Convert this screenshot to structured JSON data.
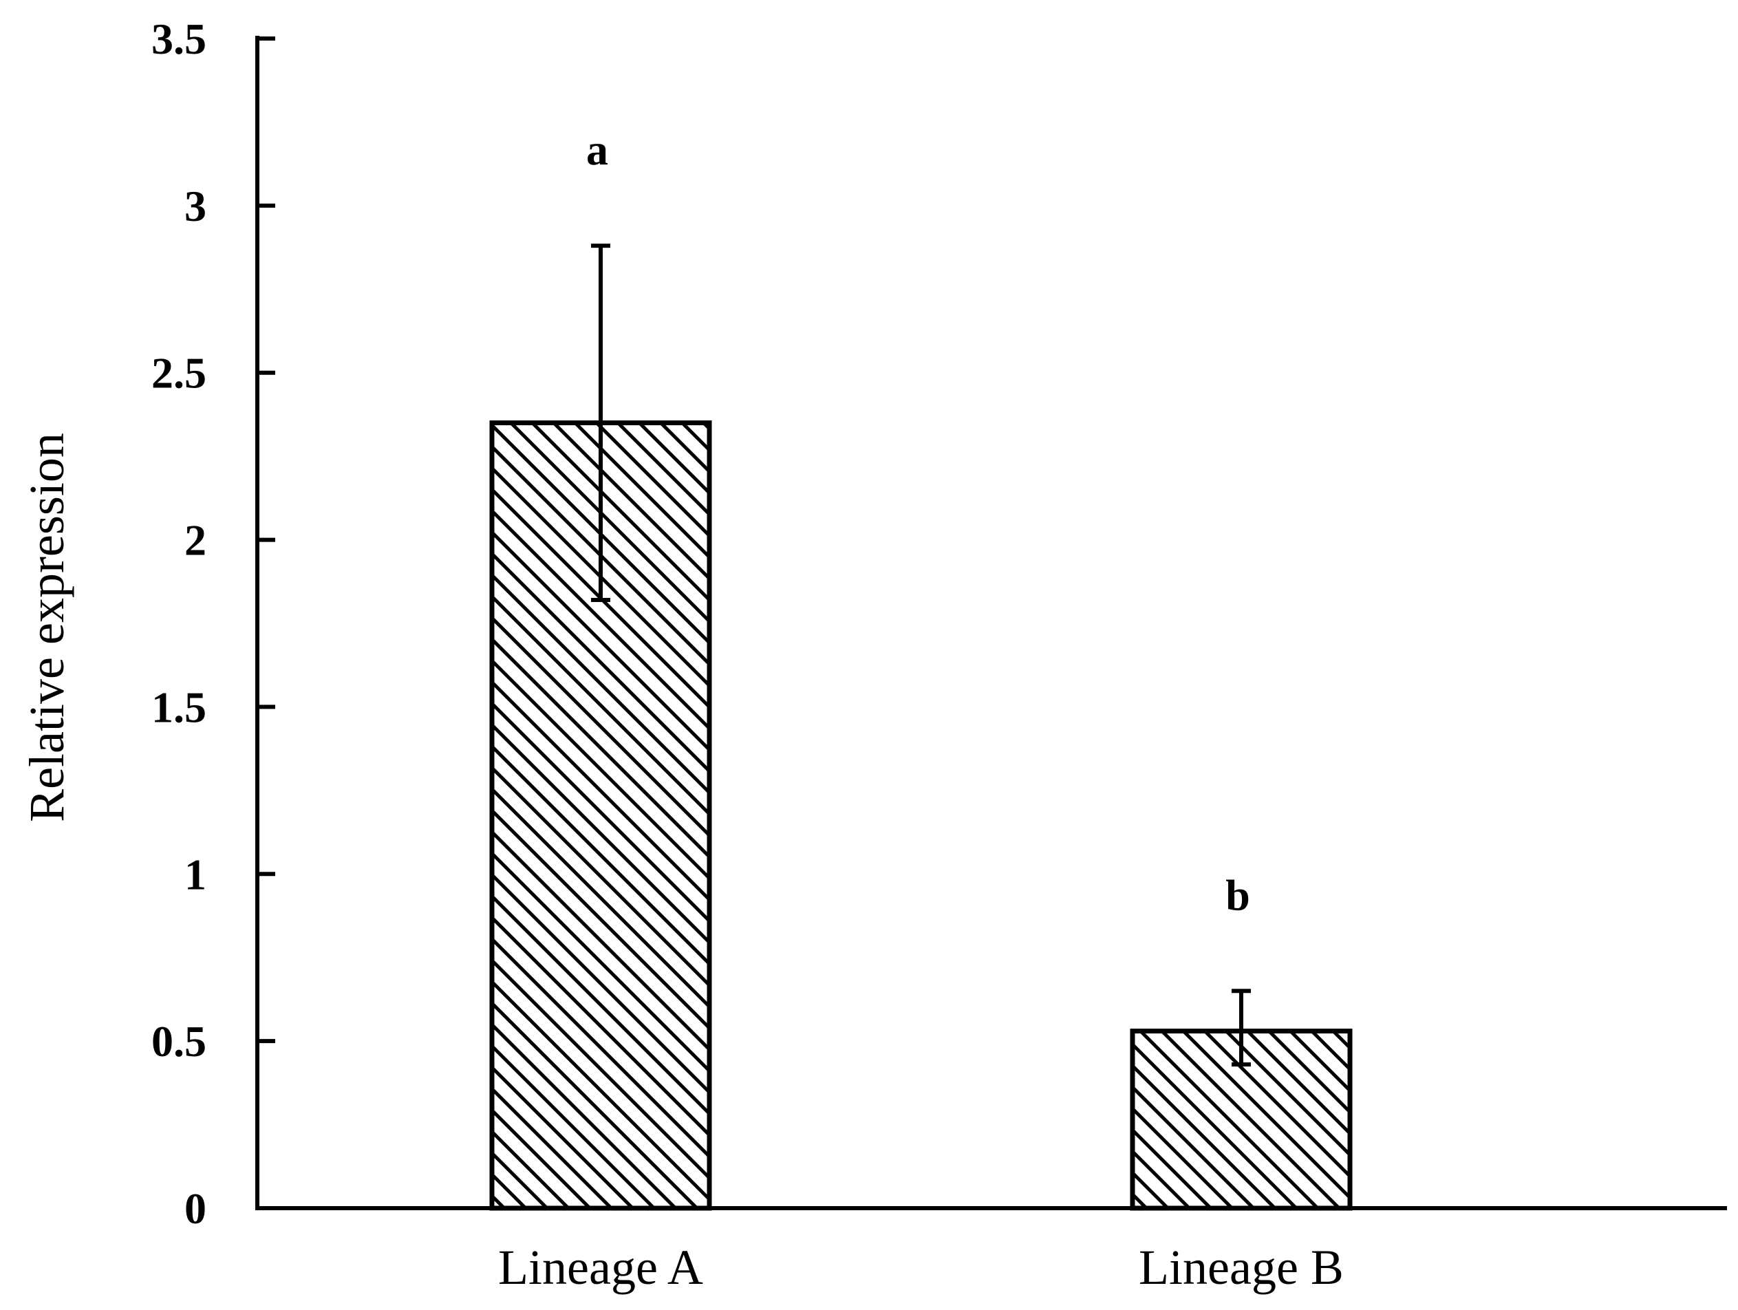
{
  "chart_data": {
    "type": "bar",
    "categories": [
      "Lineage A",
      "Lineage B"
    ],
    "values": [
      2.35,
      0.53
    ],
    "error_plus": [
      0.53,
      0.12
    ],
    "error_minus": [
      0.53,
      0.1
    ],
    "significance_labels": [
      "a",
      "b"
    ],
    "title": "",
    "xlabel": "",
    "ylabel": "Relative expression",
    "ylim": [
      0,
      3.5
    ],
    "yticks": [
      0,
      0.5,
      1,
      1.5,
      2,
      2.5,
      3,
      3.5
    ],
    "ytick_labels": [
      "0",
      "0.5",
      "1",
      "1.5",
      "2",
      "2.5",
      "3",
      "3.5"
    ],
    "bar_fill": "hatched",
    "bar_color": "#000000",
    "grid": false,
    "legend": "none"
  }
}
